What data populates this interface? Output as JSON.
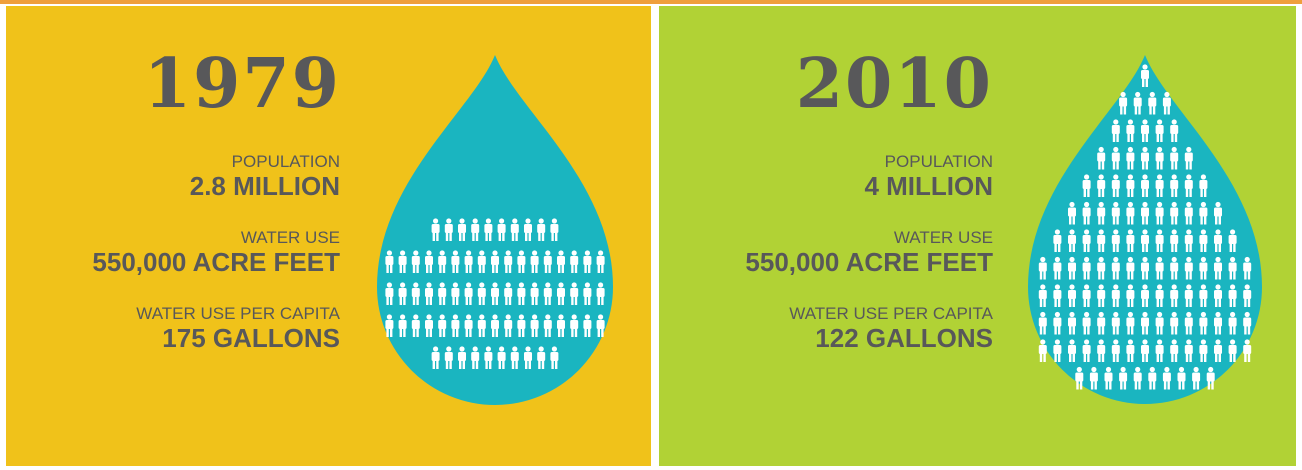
{
  "panels": [
    {
      "year": "1979",
      "stats": [
        {
          "label": "POPULATION",
          "value": "2.8 MILLION"
        },
        {
          "label": "WATER USE",
          "value": "550,000 ACRE FEET"
        },
        {
          "label": "WATER USE PER CAPITA",
          "value": "175 GALLONS"
        }
      ]
    },
    {
      "year": "2010",
      "stats": [
        {
          "label": "POPULATION",
          "value": "4 MILLION"
        },
        {
          "label": "WATER USE",
          "value": "550,000 ACRE FEET"
        },
        {
          "label": "WATER USE PER CAPITA",
          "value": "122 GALLONS"
        }
      ]
    }
  ]
}
